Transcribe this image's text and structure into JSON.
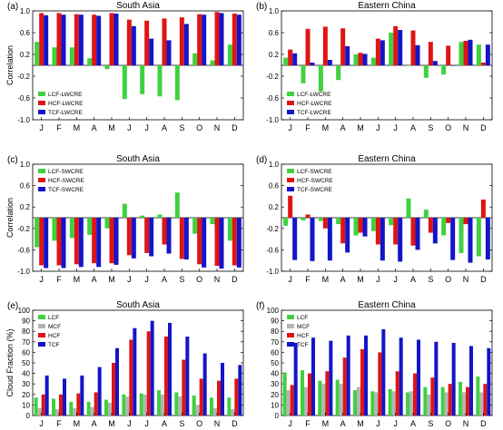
{
  "colors": {
    "lcf": "#3fd13f",
    "mcf": "#b4b4b4",
    "hcf": "#e01414",
    "tcf": "#1414c8"
  },
  "chart_data": [
    {
      "panel_label": "(a)",
      "title": "South Asia",
      "type": "bar",
      "categories": [
        "J",
        "F",
        "M",
        "A",
        "M",
        "J",
        "J",
        "A",
        "S",
        "O",
        "N",
        "D"
      ],
      "ylabel": "Correlation",
      "ylim": [
        -1.0,
        1.0
      ],
      "yticks": [
        {
          "v": -1.0,
          "t": "-1.0"
        },
        {
          "v": -0.6,
          "t": "-0.6"
        },
        {
          "v": -0.2,
          "t": "-0.2"
        },
        {
          "v": 0.2,
          "t": "0.2"
        },
        {
          "v": 0.6,
          "t": "0.6"
        },
        {
          "v": 1.0,
          "t": "1.0"
        }
      ],
      "zero_line": true,
      "legend_position": "bottom-left",
      "series": [
        {
          "name": "LCF-LWCRE",
          "color": "lcf",
          "values": [
            0.43,
            0.33,
            0.33,
            0.13,
            -0.07,
            -0.62,
            -0.53,
            -0.57,
            -0.64,
            0.22,
            0.09,
            0.38
          ]
        },
        {
          "name": "HCF-LWCRE",
          "color": "hcf",
          "values": [
            0.96,
            0.96,
            0.94,
            0.93,
            0.96,
            0.84,
            0.82,
            0.86,
            0.88,
            0.94,
            0.98,
            0.95
          ]
        },
        {
          "name": "TCF-LWCRE",
          "color": "tcf",
          "values": [
            0.92,
            0.93,
            0.93,
            0.91,
            0.95,
            0.72,
            0.49,
            0.46,
            0.76,
            0.93,
            0.96,
            0.93
          ]
        }
      ]
    },
    {
      "panel_label": "(b)",
      "title": "Eastern China",
      "type": "bar",
      "categories": [
        "J",
        "F",
        "M",
        "A",
        "M",
        "J",
        "J",
        "A",
        "S",
        "O",
        "N",
        "D"
      ],
      "ylabel": "",
      "ylim": [
        -1.0,
        1.0
      ],
      "yticks": [
        {
          "v": -1.0,
          "t": "-1.0"
        },
        {
          "v": -0.6,
          "t": "-0.6"
        },
        {
          "v": -0.2,
          "t": "-0.2"
        },
        {
          "v": 0.2,
          "t": "0.2"
        },
        {
          "v": 0.6,
          "t": "0.6"
        },
        {
          "v": 1.0,
          "t": "1.0"
        }
      ],
      "zero_line": true,
      "legend_position": "bottom-left",
      "series": [
        {
          "name": "LCF-LWCRE",
          "color": "lcf",
          "values": [
            0.14,
            -0.33,
            -0.48,
            -0.27,
            0.2,
            0.14,
            0.6,
            0.0,
            -0.23,
            -0.17,
            0.43,
            0.38
          ]
        },
        {
          "name": "HCF-LWCRE",
          "color": "hcf",
          "values": [
            0.29,
            0.67,
            0.71,
            0.68,
            0.23,
            0.49,
            0.72,
            0.64,
            0.43,
            0.36,
            0.45,
            0.05
          ]
        },
        {
          "name": "TCF-LWCRE",
          "color": "tcf",
          "values": [
            0.22,
            0.05,
            0.1,
            0.35,
            0.21,
            0.46,
            0.65,
            0.37,
            0.08,
            0.0,
            0.47,
            0.38
          ]
        }
      ]
    },
    {
      "panel_label": "(c)",
      "title": "South Asia",
      "type": "bar",
      "categories": [
        "J",
        "F",
        "M",
        "A",
        "M",
        "J",
        "J",
        "A",
        "S",
        "O",
        "N",
        "D"
      ],
      "ylabel": "Correlation",
      "ylim": [
        -1.0,
        1.0
      ],
      "yticks": [
        {
          "v": -1.0,
          "t": "-1.0"
        },
        {
          "v": -0.6,
          "t": "-0.6"
        },
        {
          "v": -0.2,
          "t": "-0.2"
        },
        {
          "v": 0.2,
          "t": "0.2"
        },
        {
          "v": 0.6,
          "t": "0.6"
        },
        {
          "v": 1.0,
          "t": "1.0"
        }
      ],
      "zero_line": true,
      "legend_position": "top-left",
      "series": [
        {
          "name": "LCF-SWCRE",
          "color": "lcf",
          "values": [
            -0.55,
            -0.43,
            -0.38,
            -0.32,
            -0.2,
            0.26,
            0.04,
            0.06,
            0.47,
            -0.3,
            -0.12,
            -0.43
          ]
        },
        {
          "name": "HCF-SWCRE",
          "color": "hcf",
          "values": [
            -0.89,
            -0.89,
            -0.87,
            -0.85,
            -0.85,
            -0.7,
            -0.66,
            -0.5,
            -0.77,
            -0.87,
            -0.9,
            -0.89
          ]
        },
        {
          "name": "TCF-SWCRE",
          "color": "tcf",
          "values": [
            -0.94,
            -0.94,
            -0.92,
            -0.92,
            -0.88,
            -0.76,
            -0.72,
            -0.67,
            -0.78,
            -0.93,
            -0.95,
            -0.93
          ]
        }
      ]
    },
    {
      "panel_label": "(d)",
      "title": "Eastern China",
      "type": "bar",
      "categories": [
        "J",
        "F",
        "M",
        "A",
        "M",
        "J",
        "J",
        "A",
        "S",
        "O",
        "N",
        "D"
      ],
      "ylabel": "",
      "ylim": [
        -1.0,
        1.0
      ],
      "yticks": [
        {
          "v": -1.0,
          "t": "-1.0"
        },
        {
          "v": -0.6,
          "t": "-0.6"
        },
        {
          "v": -0.2,
          "t": "-0.2"
        },
        {
          "v": 0.2,
          "t": "0.2"
        },
        {
          "v": 0.6,
          "t": "0.6"
        },
        {
          "v": 1.0,
          "t": "1.0"
        }
      ],
      "zero_line": true,
      "legend_position": "top-left",
      "series": [
        {
          "name": "LCF-SWCRE",
          "color": "lcf",
          "values": [
            -0.15,
            -0.05,
            -0.06,
            -0.12,
            -0.33,
            -0.25,
            -0.14,
            0.36,
            0.15,
            -0.33,
            -0.66,
            -0.72
          ]
        },
        {
          "name": "HCF-SWCRE",
          "color": "hcf",
          "values": [
            0.41,
            0.06,
            -0.2,
            -0.48,
            -0.28,
            -0.5,
            -0.5,
            -0.52,
            -0.28,
            -0.1,
            -0.12,
            0.34
          ]
        },
        {
          "name": "TCF-SWCRE",
          "color": "tcf",
          "values": [
            -0.79,
            -0.81,
            -0.8,
            -0.65,
            -0.35,
            -0.8,
            -0.82,
            -0.6,
            -0.48,
            -0.79,
            -0.84,
            -0.78
          ]
        }
      ]
    },
    {
      "panel_label": "(e)",
      "title": "South Asia",
      "type": "bar",
      "categories": [
        "J",
        "F",
        "M",
        "A",
        "M",
        "J",
        "J",
        "A",
        "S",
        "O",
        "N",
        "D"
      ],
      "ylabel": "Cloud Fraction (%)",
      "ylim": [
        0,
        100
      ],
      "yticks": [
        {
          "v": 0,
          "t": "0"
        },
        {
          "v": 10,
          "t": "10"
        },
        {
          "v": 20,
          "t": "20"
        },
        {
          "v": 30,
          "t": "30"
        },
        {
          "v": 40,
          "t": "40"
        },
        {
          "v": 50,
          "t": "50"
        },
        {
          "v": 60,
          "t": "60"
        },
        {
          "v": 70,
          "t": "70"
        },
        {
          "v": 80,
          "t": "80"
        },
        {
          "v": 90,
          "t": "90"
        },
        {
          "v": 100,
          "t": "100"
        }
      ],
      "zero_line": false,
      "legend_position": "top-left",
      "series": [
        {
          "name": "LCF",
          "color": "lcf",
          "values": [
            17,
            16,
            13,
            13,
            15,
            20,
            21,
            24,
            22,
            19,
            17,
            17
          ]
        },
        {
          "name": "MCF",
          "color": "mcf",
          "values": [
            7,
            6,
            7,
            8,
            12,
            18,
            20,
            20,
            18,
            10,
            7,
            6
          ]
        },
        {
          "name": "HCF",
          "color": "hcf",
          "values": [
            20,
            20,
            21,
            22,
            50,
            72,
            80,
            75,
            53,
            35,
            33,
            35
          ]
        },
        {
          "name": "TCF",
          "color": "tcf",
          "values": [
            38,
            35,
            38,
            46,
            64,
            83,
            90,
            88,
            75,
            59,
            50,
            48
          ]
        }
      ]
    },
    {
      "panel_label": "(f)",
      "title": "Eastern China",
      "type": "bar",
      "categories": [
        "J",
        "F",
        "M",
        "A",
        "M",
        "J",
        "J",
        "A",
        "S",
        "O",
        "N",
        "D"
      ],
      "ylabel": "",
      "ylim": [
        0,
        100
      ],
      "yticks": [
        {
          "v": 0,
          "t": "0"
        },
        {
          "v": 10,
          "t": "10"
        },
        {
          "v": 20,
          "t": "20"
        },
        {
          "v": 30,
          "t": "30"
        },
        {
          "v": 40,
          "t": "40"
        },
        {
          "v": 50,
          "t": "50"
        },
        {
          "v": 60,
          "t": "60"
        },
        {
          "v": 70,
          "t": "70"
        },
        {
          "v": 80,
          "t": "80"
        },
        {
          "v": 90,
          "t": "90"
        },
        {
          "v": 100,
          "t": "100"
        }
      ],
      "zero_line": false,
      "legend_position": "top-left",
      "series": [
        {
          "name": "LCF",
          "color": "lcf",
          "values": [
            41,
            43,
            33,
            34,
            24,
            23,
            25,
            22,
            27,
            27,
            32,
            37
          ]
        },
        {
          "name": "MCF",
          "color": "mcf",
          "values": [
            24,
            27,
            30,
            30,
            27,
            22,
            23,
            23,
            20,
            22,
            22,
            22
          ]
        },
        {
          "name": "HCF",
          "color": "hcf",
          "values": [
            29,
            40,
            42,
            55,
            63,
            60,
            42,
            40,
            36,
            30,
            27,
            30
          ]
        },
        {
          "name": "TCF",
          "color": "tcf",
          "values": [
            69,
            74,
            71,
            76,
            76,
            82,
            74,
            72,
            70,
            69,
            66,
            64
          ]
        }
      ]
    }
  ]
}
